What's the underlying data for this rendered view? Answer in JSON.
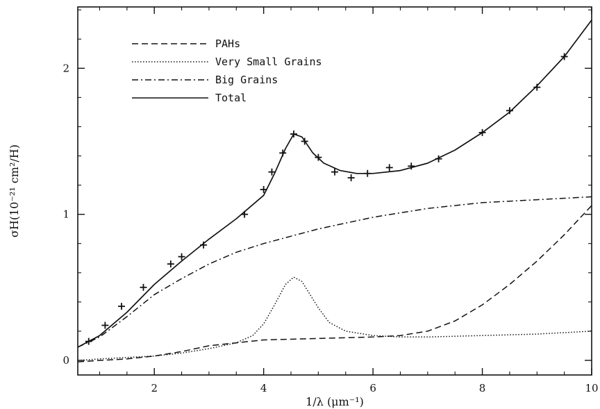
{
  "chart_data": {
    "type": "line",
    "xlabel": "1/λ (μm⁻¹)",
    "ylabel": "σH(10⁻²¹ cm²/H)",
    "xlim": [
      0.6,
      10
    ],
    "ylim": [
      -0.1,
      2.42
    ],
    "x_ticks": [
      2,
      4,
      6,
      8,
      10
    ],
    "y_ticks": [
      0,
      1,
      2
    ],
    "x_tick_labels": [
      "2",
      "4",
      "6",
      "8",
      "10"
    ],
    "y_tick_labels": [
      "0",
      "1",
      "2"
    ],
    "legend_position": "top-left",
    "series": [
      {
        "name": "PAHs",
        "style": "dashed",
        "x": [
          0.6,
          1.0,
          1.5,
          2.0,
          2.5,
          3.0,
          3.5,
          4.0,
          4.5,
          5.0,
          5.5,
          6.0,
          6.5,
          7.0,
          7.5,
          8.0,
          8.5,
          9.0,
          9.5,
          10.0
        ],
        "y": [
          -0.01,
          0.0,
          0.01,
          0.03,
          0.06,
          0.1,
          0.12,
          0.14,
          0.145,
          0.15,
          0.155,
          0.16,
          0.17,
          0.2,
          0.27,
          0.38,
          0.52,
          0.68,
          0.86,
          1.06
        ]
      },
      {
        "name": "Very Small Grains",
        "style": "dotted",
        "x": [
          0.6,
          1.0,
          1.5,
          2.0,
          2.5,
          3.0,
          3.5,
          3.8,
          4.0,
          4.2,
          4.4,
          4.55,
          4.7,
          4.8,
          5.0,
          5.2,
          5.5,
          6.0,
          6.5,
          7.0,
          8.0,
          9.0,
          10.0
        ],
        "y": [
          0.0,
          0.01,
          0.02,
          0.03,
          0.05,
          0.08,
          0.12,
          0.17,
          0.25,
          0.38,
          0.52,
          0.57,
          0.54,
          0.48,
          0.36,
          0.26,
          0.2,
          0.17,
          0.16,
          0.16,
          0.17,
          0.18,
          0.2
        ]
      },
      {
        "name": "Big Grains",
        "style": "dashdot",
        "x": [
          0.6,
          1.0,
          1.5,
          2.0,
          2.5,
          3.0,
          3.5,
          4.0,
          4.5,
          5.0,
          5.5,
          6.0,
          6.5,
          7.0,
          7.5,
          8.0,
          8.5,
          9.0,
          9.5,
          10.0
        ],
        "y": [
          0.09,
          0.16,
          0.3,
          0.45,
          0.56,
          0.66,
          0.74,
          0.8,
          0.85,
          0.9,
          0.94,
          0.98,
          1.01,
          1.04,
          1.06,
          1.08,
          1.09,
          1.1,
          1.11,
          1.12
        ]
      },
      {
        "name": "Total",
        "style": "solid",
        "x": [
          0.6,
          1.0,
          1.5,
          2.0,
          2.5,
          3.0,
          3.5,
          4.0,
          4.2,
          4.4,
          4.55,
          4.7,
          4.9,
          5.1,
          5.4,
          5.7,
          6.0,
          6.5,
          7.0,
          7.5,
          8.0,
          8.5,
          9.0,
          9.5,
          10.0
        ],
        "y": [
          0.09,
          0.17,
          0.33,
          0.52,
          0.68,
          0.83,
          0.97,
          1.13,
          1.28,
          1.45,
          1.55,
          1.53,
          1.42,
          1.35,
          1.3,
          1.28,
          1.28,
          1.3,
          1.35,
          1.44,
          1.56,
          1.7,
          1.88,
          2.08,
          2.33
        ]
      }
    ],
    "observed_points": {
      "marker": "plus",
      "x": [
        0.8,
        1.1,
        1.4,
        1.8,
        2.3,
        2.5,
        2.9,
        3.65,
        4.0,
        4.15,
        4.35,
        4.55,
        4.75,
        5.0,
        5.3,
        5.6,
        5.9,
        6.3,
        6.7,
        7.2,
        8.0,
        8.5,
        9.0,
        9.5
      ],
      "y": [
        0.13,
        0.24,
        0.37,
        0.5,
        0.66,
        0.71,
        0.79,
        1.0,
        1.17,
        1.29,
        1.42,
        1.55,
        1.5,
        1.39,
        1.29,
        1.25,
        1.28,
        1.32,
        1.33,
        1.38,
        1.56,
        1.71,
        1.87,
        2.08
      ]
    }
  }
}
